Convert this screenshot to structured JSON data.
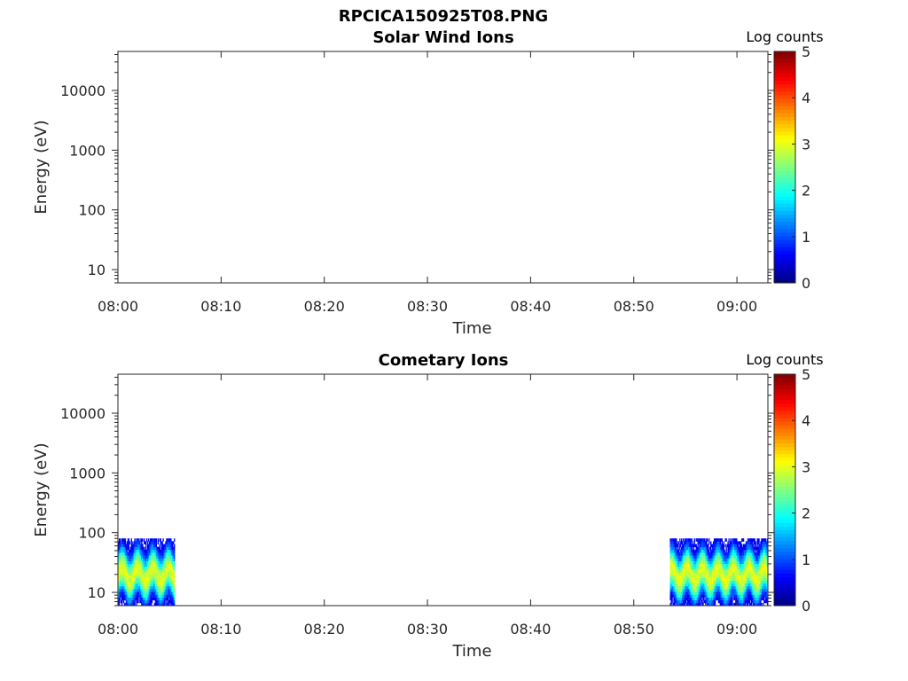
{
  "figure_title": "RPCICA150925T08.PNG",
  "chart_data": [
    {
      "type": "heatmap",
      "title": "Solar Wind Ions",
      "xlabel": "Time",
      "ylabel": "Energy (eV)",
      "x_ticks": [
        "08:00",
        "08:10",
        "08:20",
        "08:30",
        "08:40",
        "08:50",
        "09:00"
      ],
      "xlim": [
        "08:00",
        "09:03"
      ],
      "y_scale": "log",
      "y_ticks": [
        "10",
        "100",
        "1000",
        "10000"
      ],
      "ylim": [
        6,
        45000
      ],
      "colorbar": {
        "label": "Log counts",
        "ticks": [
          "0",
          "1",
          "2",
          "3",
          "4",
          "5"
        ],
        "range": [
          0,
          5
        ],
        "colormap": "jet"
      },
      "data_regions": []
    },
    {
      "type": "heatmap",
      "title": "Cometary Ions",
      "xlabel": "Time",
      "ylabel": "Energy (eV)",
      "x_ticks": [
        "08:00",
        "08:10",
        "08:20",
        "08:30",
        "08:40",
        "08:50",
        "09:00"
      ],
      "xlim": [
        "08:00",
        "09:03"
      ],
      "y_scale": "log",
      "y_ticks": [
        "10",
        "100",
        "1000",
        "10000"
      ],
      "ylim": [
        6,
        45000
      ],
      "colorbar": {
        "label": "Log counts",
        "ticks": [
          "0",
          "1",
          "2",
          "3",
          "4",
          "5"
        ],
        "range": [
          0,
          5
        ],
        "colormap": "jet"
      },
      "data_regions": [
        {
          "time_start": "08:00",
          "time_end": "08:05.5",
          "energy_min_eV": 6,
          "energy_max_eV": 80,
          "peak_energy_eV": 20,
          "peak_log_counts": 3.0
        },
        {
          "time_start": "08:53.5",
          "time_end": "09:03",
          "energy_min_eV": 6,
          "energy_max_eV": 80,
          "peak_energy_eV": 20,
          "peak_log_counts": 3.0
        }
      ]
    }
  ]
}
